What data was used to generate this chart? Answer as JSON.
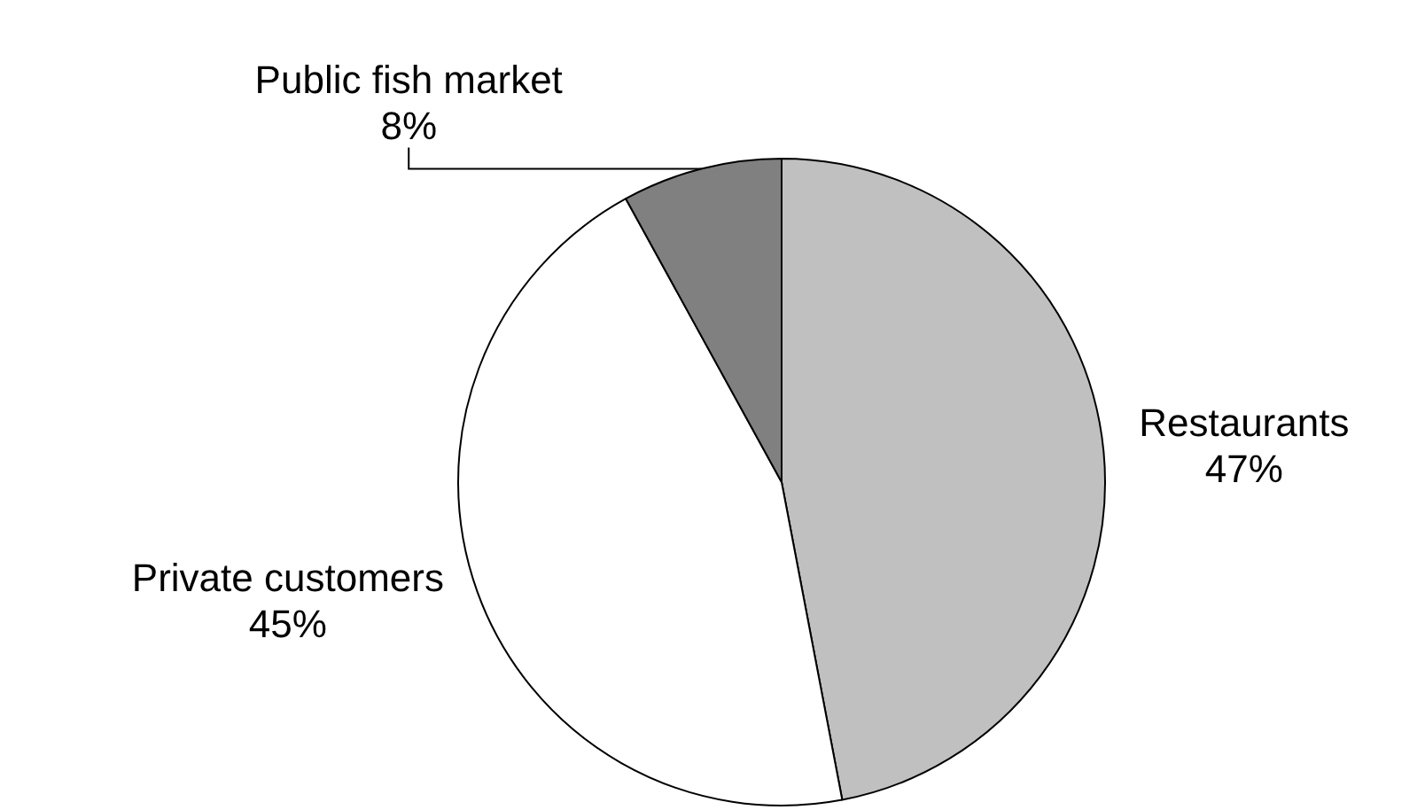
{
  "chart_data": {
    "type": "pie",
    "categories": [
      "Restaurants",
      "Private customers",
      "Public fish market"
    ],
    "values": [
      47,
      45,
      8
    ],
    "value_labels": [
      "47%",
      "45%",
      "8%"
    ],
    "colors": [
      "#c0c0c0",
      "#ffffff",
      "#808080"
    ]
  }
}
